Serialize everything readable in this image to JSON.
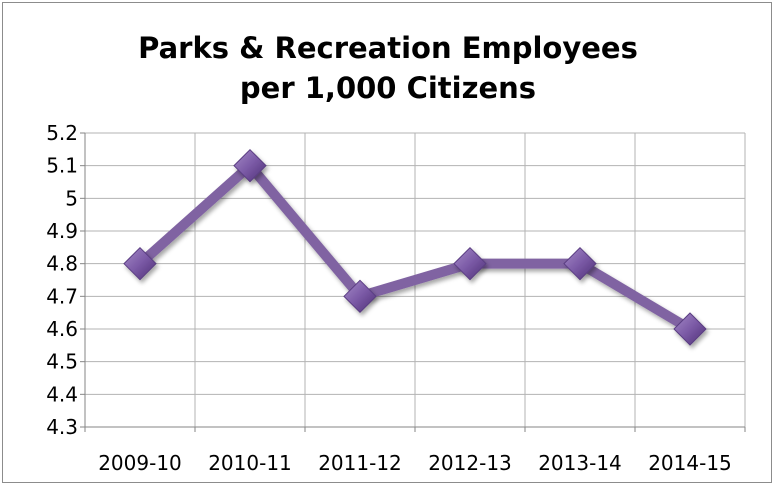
{
  "chart_data": {
    "type": "line",
    "title_lines": [
      "Parks & Recreation Employees",
      "per 1,000 Citizens"
    ],
    "categories": [
      "2009-10",
      "2010-11",
      "2011-12",
      "2012-13",
      "2013-14",
      "2014-15"
    ],
    "values": [
      4.8,
      5.1,
      4.7,
      4.8,
      4.8,
      4.6
    ],
    "ylim": [
      4.3,
      5.2
    ],
    "yticks": [
      "4.3",
      "4.4",
      "4.5",
      "4.6",
      "4.7",
      "4.8",
      "4.9",
      "5",
      "5.1",
      "5.2"
    ],
    "xlabel": "",
    "ylabel": "",
    "grid": true,
    "marker": "diamond",
    "colors": {
      "line": "#8064a2",
      "marker": "#7f5fa8",
      "grid": "#b3b3b3",
      "axis": "#868686"
    }
  }
}
